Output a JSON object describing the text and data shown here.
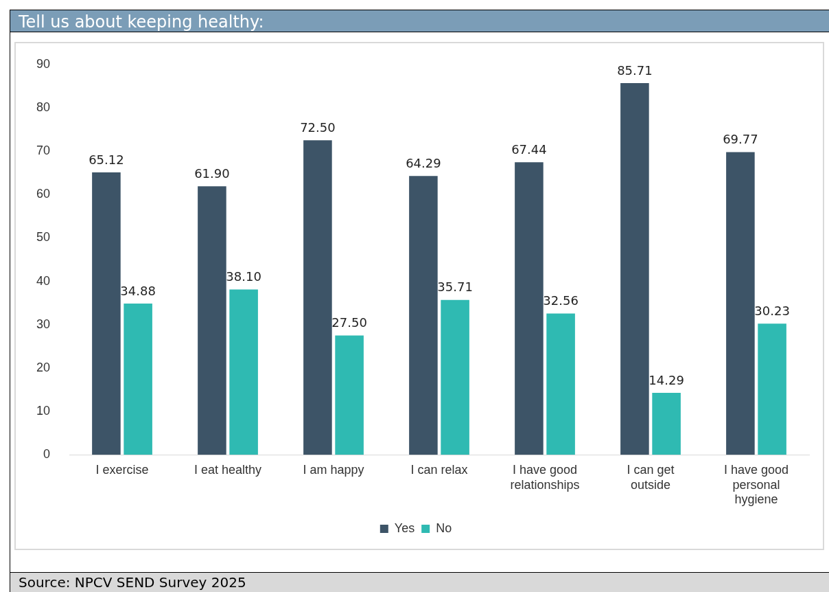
{
  "chart_data": {
    "type": "bar",
    "title": "Tell us about keeping healthy:",
    "categories": [
      "I exercise",
      "I eat healthy",
      "I am happy",
      "I can relax",
      "I have good relationships",
      "I can get outside",
      "I have good personal hygiene"
    ],
    "series": [
      {
        "name": "Yes",
        "color": "#3d5467",
        "values": [
          65.12,
          61.9,
          72.5,
          64.29,
          67.44,
          85.71,
          69.77
        ],
        "value_labels": [
          "65.12",
          "61.90",
          "72.50",
          "64.29",
          "67.44",
          "85.71",
          "69.77"
        ]
      },
      {
        "name": "No",
        "color": "#2fbab2",
        "values": [
          34.88,
          38.1,
          27.5,
          35.71,
          32.56,
          14.29,
          30.23
        ],
        "value_labels": [
          "34.88",
          "38.10",
          "27.50",
          "35.71",
          "32.56",
          "14.29",
          "30.23"
        ]
      }
    ],
    "ylim": [
      0,
      90
    ],
    "yticks": [
      0,
      10,
      20,
      30,
      40,
      50,
      60,
      70,
      80,
      90
    ],
    "grid": false,
    "legend": "bottom",
    "annotations": [
      "Source: NPCV SEND Survey 2025"
    ]
  }
}
